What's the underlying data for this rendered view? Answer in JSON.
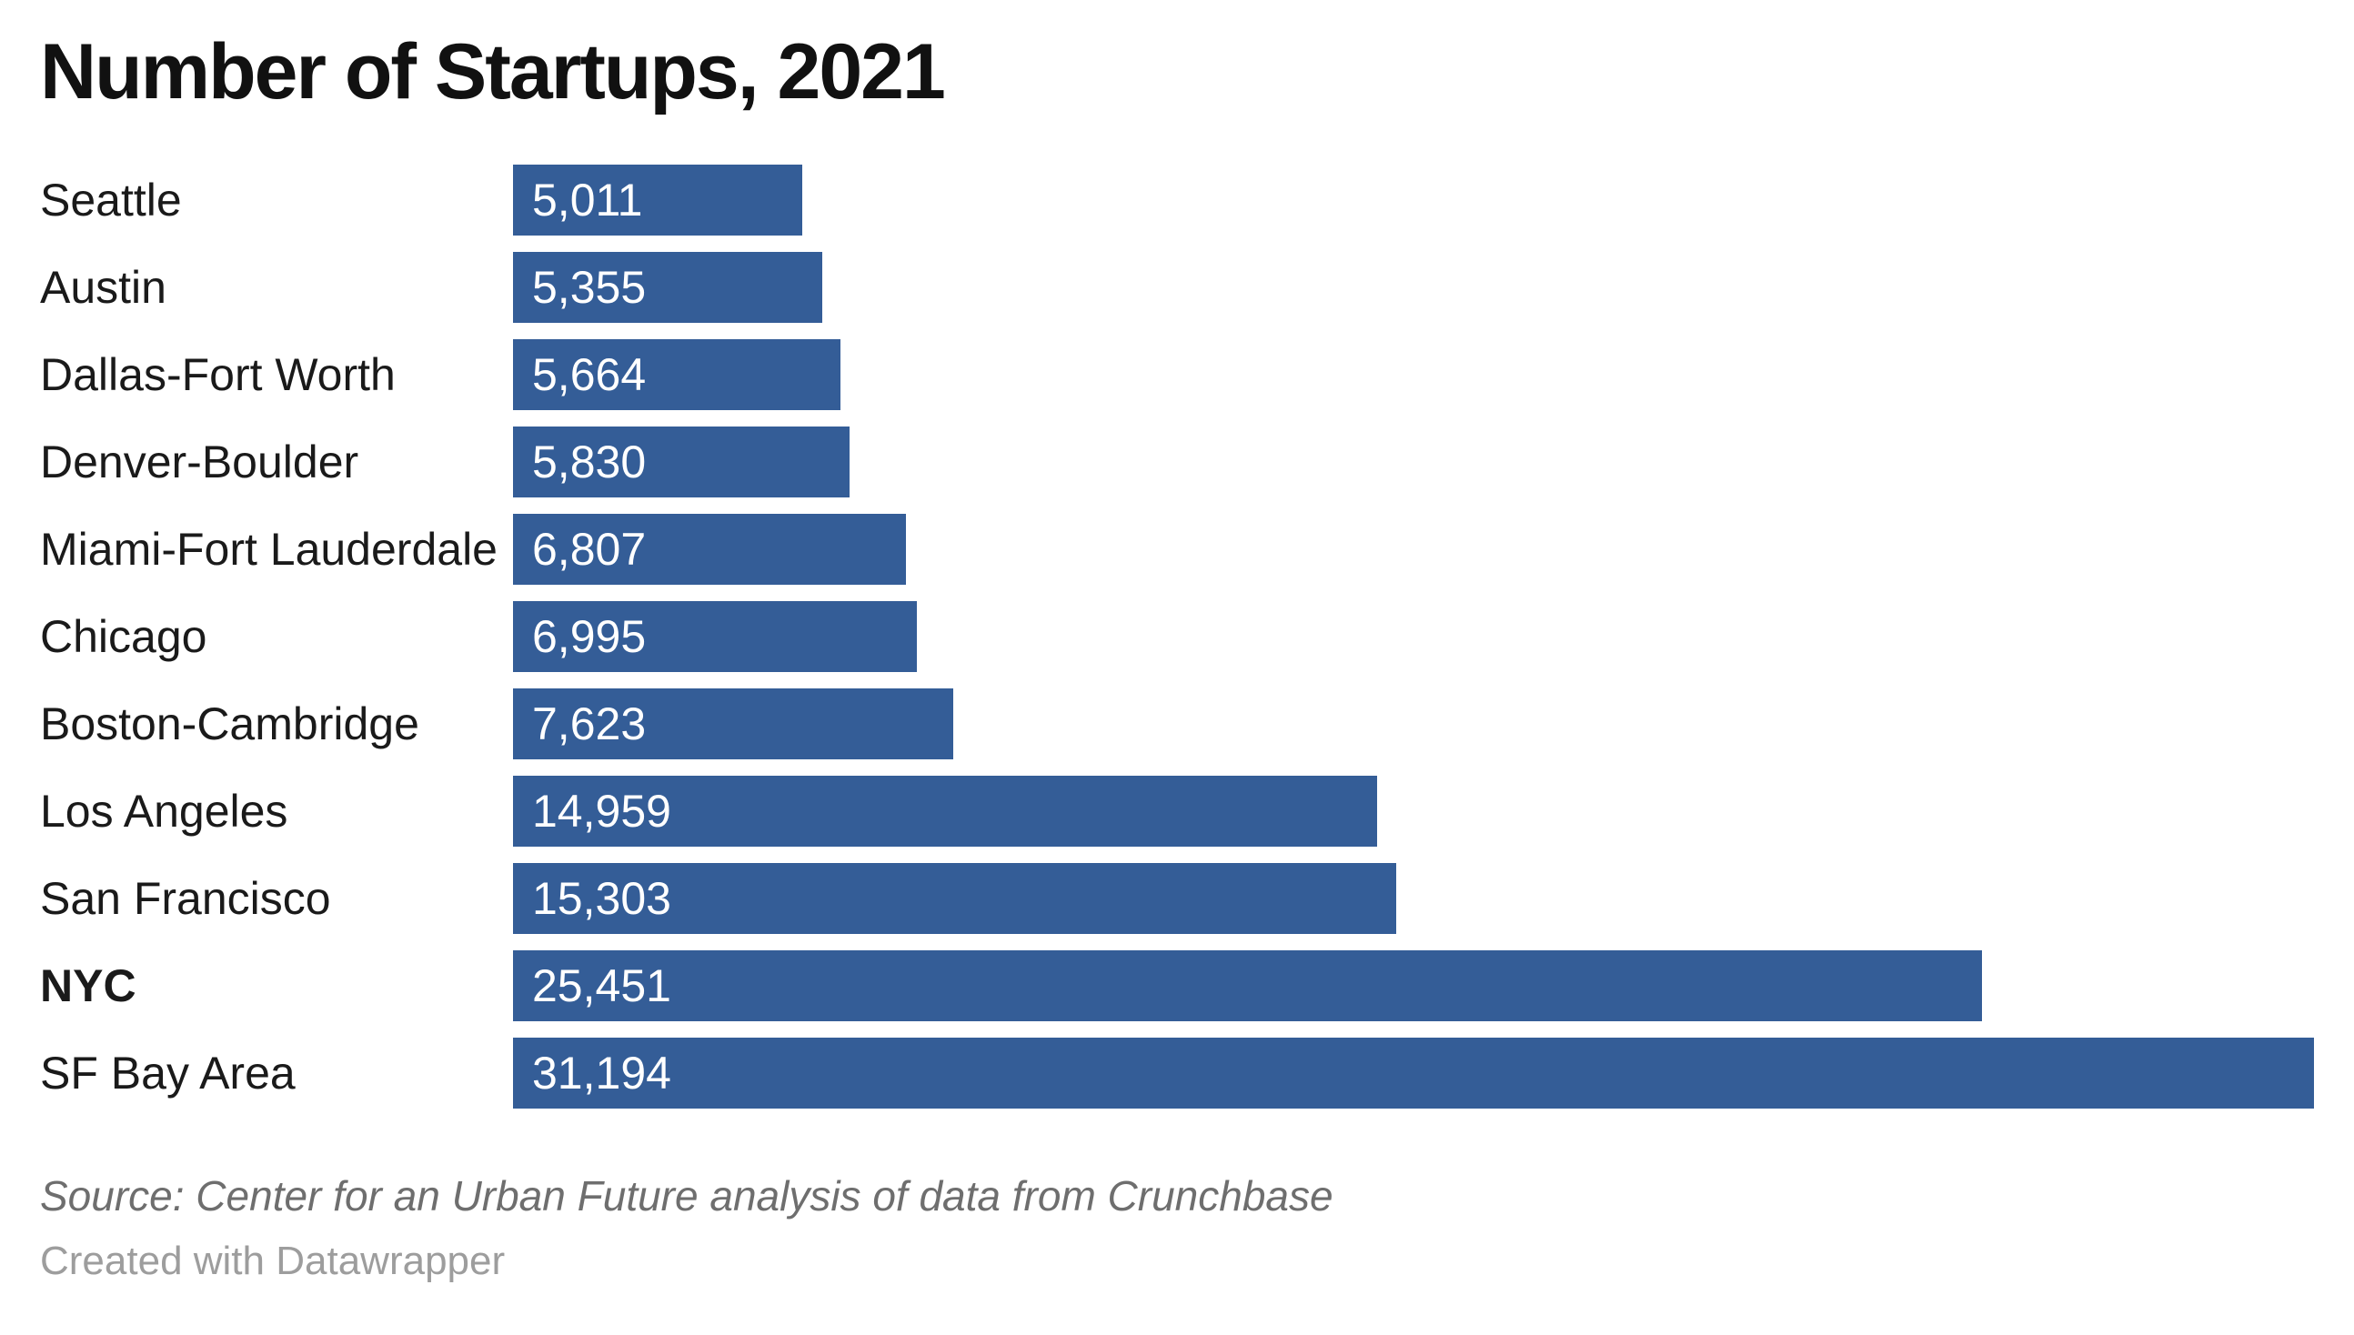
{
  "title": "Number of Startups, 2021",
  "footer": {
    "source": "Source: Center for an Urban Future analysis of data from Crunchbase",
    "attribution": "Created with Datawrapper"
  },
  "colors": {
    "bar": "#345D97",
    "title": "#111111",
    "label": "#1a1a1a",
    "value_text": "#ffffff",
    "source_text": "#6e6e6e",
    "attribution_text": "#9d9d9d"
  },
  "chart_data": {
    "type": "bar",
    "orientation": "horizontal",
    "title": "Number of Startups, 2021",
    "categories": [
      "Seattle",
      "Austin",
      "Dallas-Fort Worth",
      "Denver-Boulder",
      "Miami-Fort Lauderdale",
      "Chicago",
      "Boston-Cambridge",
      "Los Angeles",
      "San Francisco",
      "NYC",
      "SF Bay Area"
    ],
    "values": [
      5011,
      5355,
      5664,
      5830,
      6807,
      6995,
      7623,
      14959,
      15303,
      25451,
      31194
    ],
    "value_labels": [
      "5,011",
      "5,355",
      "5,664",
      "5,830",
      "6,807",
      "6,995",
      "7,623",
      "14,959",
      "15,303",
      "25,451",
      "31,194"
    ],
    "emphasized_category": "NYC",
    "xlim": [
      0,
      31194
    ],
    "grid": false,
    "legend": false,
    "value_label_position": "inside-left",
    "sort_order": "ascending"
  }
}
